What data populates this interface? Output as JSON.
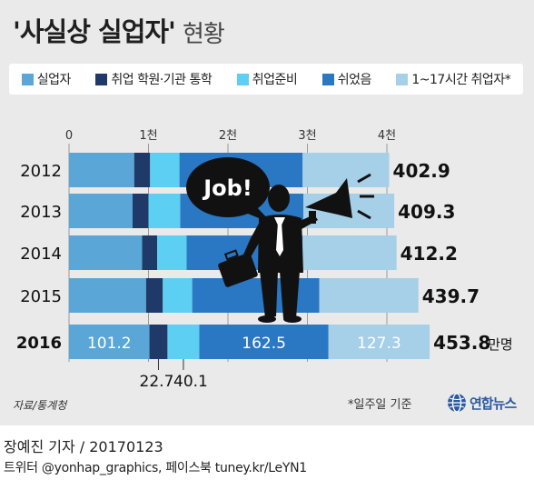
{
  "title": "'사실상 실업자'",
  "subtitle": "현황",
  "colors": {
    "unemployed": "#5aa6d6",
    "prep_academy": "#1f3a68",
    "job_prep": "#5ccff2",
    "rested": "#2a78c4",
    "short_hours": "#a6cfe8"
  },
  "chart_data": {
    "type": "bar",
    "orientation": "horizontal",
    "stacked": true,
    "categories": [
      "2012",
      "2013",
      "2014",
      "2015",
      "2016"
    ],
    "x_ticks": [
      "0",
      "1천",
      "2천",
      "3천",
      "4천"
    ],
    "xlim": [
      0,
      4000
    ],
    "series": [
      {
        "name": "실업자",
        "values": [
          82,
          80,
          92,
          97,
          101.2
        ]
      },
      {
        "name": "취업 학원·기관 통학",
        "values": [
          20,
          20,
          19,
          21,
          22.7
        ]
      },
      {
        "name": "취업준비",
        "values": [
          37,
          40,
          37,
          37,
          40.1
        ]
      },
      {
        "name": "쉬었음",
        "values": [
          155,
          155,
          146,
          160,
          162.5
        ]
      },
      {
        "name": "1~17시간 취업자*",
        "values": [
          108.9,
          114.3,
          118.2,
          124.7,
          127.3
        ]
      }
    ],
    "totals": [
      "402.9",
      "409.3",
      "412.2",
      "439.7",
      "453.8"
    ],
    "total_unit": "만명",
    "bar_labels_2016": [
      "101.2",
      "22.7",
      "40.1",
      "162.5",
      "127.3"
    ],
    "speech_bubble": "Job!"
  },
  "source": "자료/통계청",
  "footnote": "*일주일 기준",
  "logo_text": "연합뉴스",
  "byline": "장예진 기자 / 20170123",
  "footer": "트위터 @yonhap_graphics, 페이스북 tuney.kr/LeYN1"
}
